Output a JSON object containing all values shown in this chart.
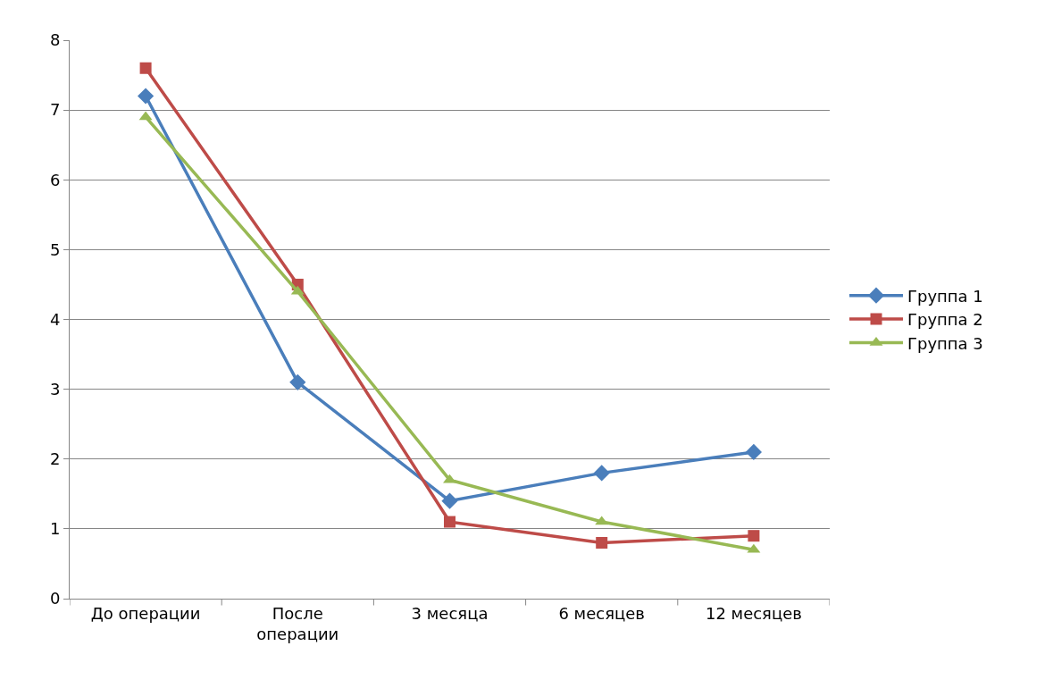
{
  "chart_data": {
    "type": "line",
    "categories": [
      "До операции",
      "После операции",
      "3 месяца",
      "6 месяцев",
      "12 месяцев"
    ],
    "series": [
      {
        "name": "Группа 1",
        "color": "#4a7ebb",
        "marker": "diamond",
        "values": [
          7.2,
          3.1,
          1.4,
          1.8,
          2.1
        ]
      },
      {
        "name": "Группа 2",
        "color": "#be4b48",
        "marker": "square",
        "values": [
          7.6,
          4.5,
          1.1,
          0.8,
          0.9
        ]
      },
      {
        "name": "Группа 3",
        "color": "#98b954",
        "marker": "triangle",
        "values": [
          6.9,
          4.4,
          1.7,
          1.1,
          0.7
        ]
      }
    ],
    "ylim": [
      0,
      8
    ],
    "yticks": [
      0,
      1,
      2,
      3,
      4,
      5,
      6,
      7,
      8
    ],
    "grid": "y",
    "legend": "right",
    "line_style": "solid"
  }
}
